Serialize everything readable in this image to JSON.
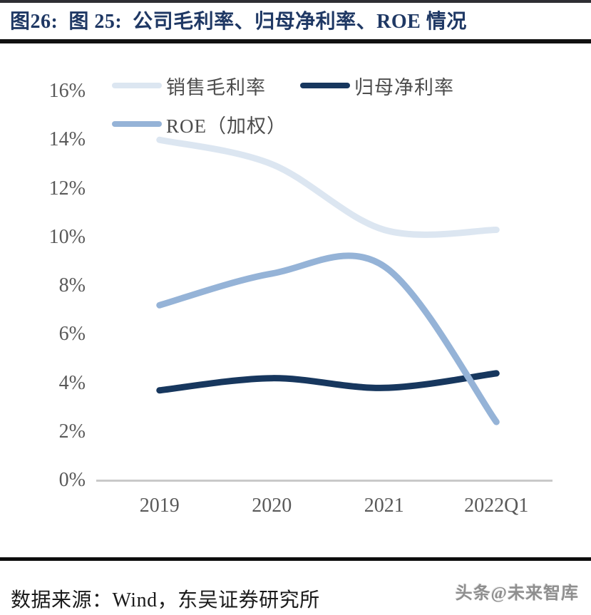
{
  "title": "图26:  图 25:  公司毛利率、归母净利率、ROE 情况",
  "footer": {
    "source": "数据来源：Wind，东吴证券研究所",
    "watermark": "头条@未来智库"
  },
  "colors": {
    "title_navy": "#1f3864",
    "gross_margin_line": "#dce6f1",
    "net_margin_line": "#17375e",
    "roe_line": "#95b3d7",
    "axis_text": "#595959",
    "axis_line": "#c9c9c9"
  },
  "legend": [
    {
      "key": "gross_margin",
      "label": "销售毛利率",
      "color": "#dce6f1"
    },
    {
      "key": "net_margin",
      "label": "归母净利率",
      "color": "#17375e"
    },
    {
      "key": "roe",
      "label": "ROE（加权）",
      "color": "#95b3d7"
    }
  ],
  "chart_data": {
    "type": "line",
    "smooth": true,
    "grid": false,
    "legend_position": "top-left",
    "categories": [
      "2019",
      "2020",
      "2021",
      "2022Q1"
    ],
    "series": [
      {
        "key": "gross_margin",
        "name": "销售毛利率",
        "color": "#dce6f1",
        "values": [
          14.0,
          13.0,
          10.3,
          10.3
        ]
      },
      {
        "key": "net_margin",
        "name": "归母净利率",
        "color": "#17375e",
        "values": [
          3.7,
          4.2,
          3.8,
          4.4
        ]
      },
      {
        "key": "roe",
        "name": "ROE（加权）",
        "color": "#95b3d7",
        "values": [
          7.2,
          8.5,
          8.8,
          2.4
        ]
      }
    ],
    "title": "公司毛利率、归母净利率、ROE 情况",
    "xlabel": "",
    "ylabel": "",
    "ylim": [
      0,
      16
    ],
    "ytick_step": 2,
    "ytick_labels": [
      "0%",
      "2%",
      "4%",
      "6%",
      "8%",
      "10%",
      "12%",
      "14%",
      "16%"
    ]
  }
}
